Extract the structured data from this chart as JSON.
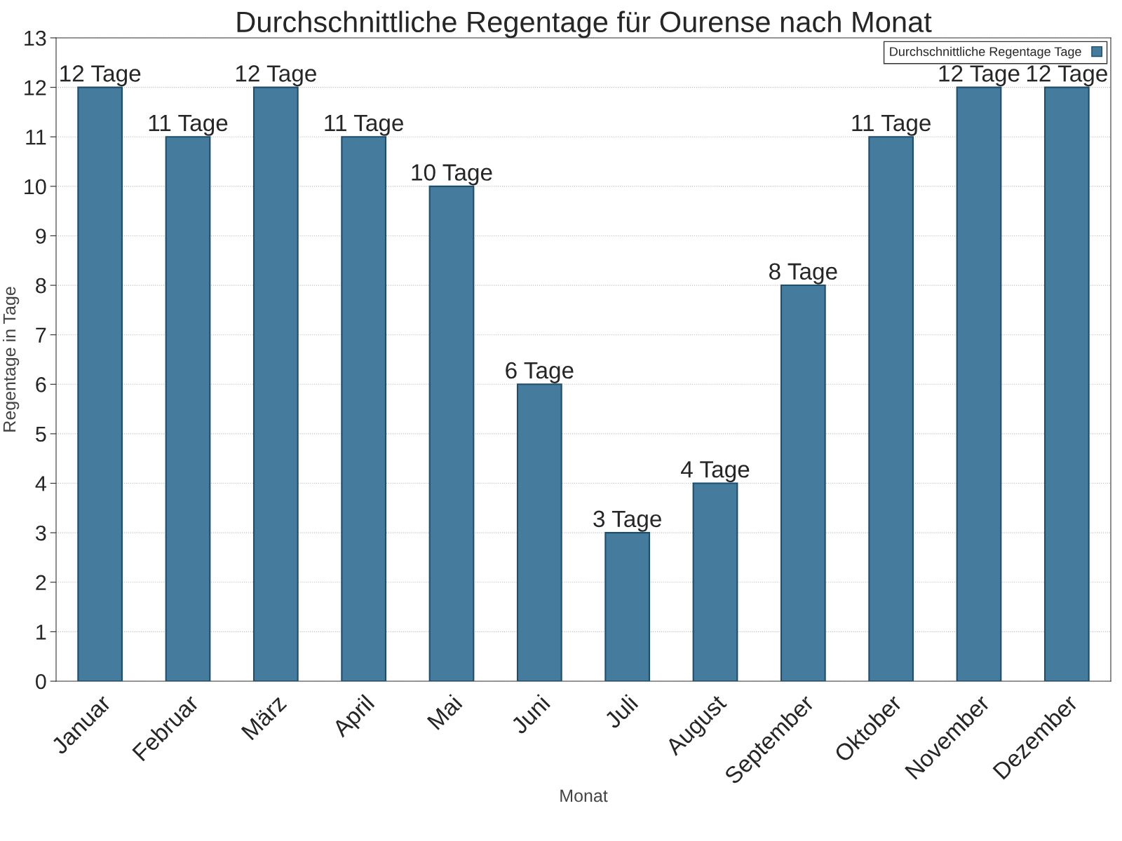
{
  "chart_data": {
    "type": "bar",
    "title": "Durchschnittliche Regentage für Ourense nach Monat",
    "xlabel": "Monat",
    "ylabel": "Regentage in Tage",
    "categories": [
      "Januar",
      "Februar",
      "März",
      "April",
      "Mai",
      "Juni",
      "Juli",
      "August",
      "September",
      "Oktober",
      "November",
      "Dezember"
    ],
    "series": [
      {
        "name": "Durchschnittliche Regentage Tage",
        "color": "#457b9d",
        "values": [
          12,
          11,
          12,
          11,
          10,
          6,
          3,
          4,
          8,
          11,
          12,
          12
        ],
        "value_labels": [
          "12 Tage",
          "11 Tage",
          "12 Tage",
          "11 Tage",
          "10 Tage",
          "6 Tage",
          "3 Tage",
          "4 Tage",
          "8 Tage",
          "11 Tage",
          "12 Tage",
          "12 Tage"
        ]
      }
    ],
    "ylim": [
      0,
      13
    ],
    "yticks": [
      0,
      1,
      2,
      3,
      4,
      5,
      6,
      7,
      8,
      9,
      10,
      11,
      12,
      13
    ],
    "grid": "y",
    "legend": "top right"
  }
}
